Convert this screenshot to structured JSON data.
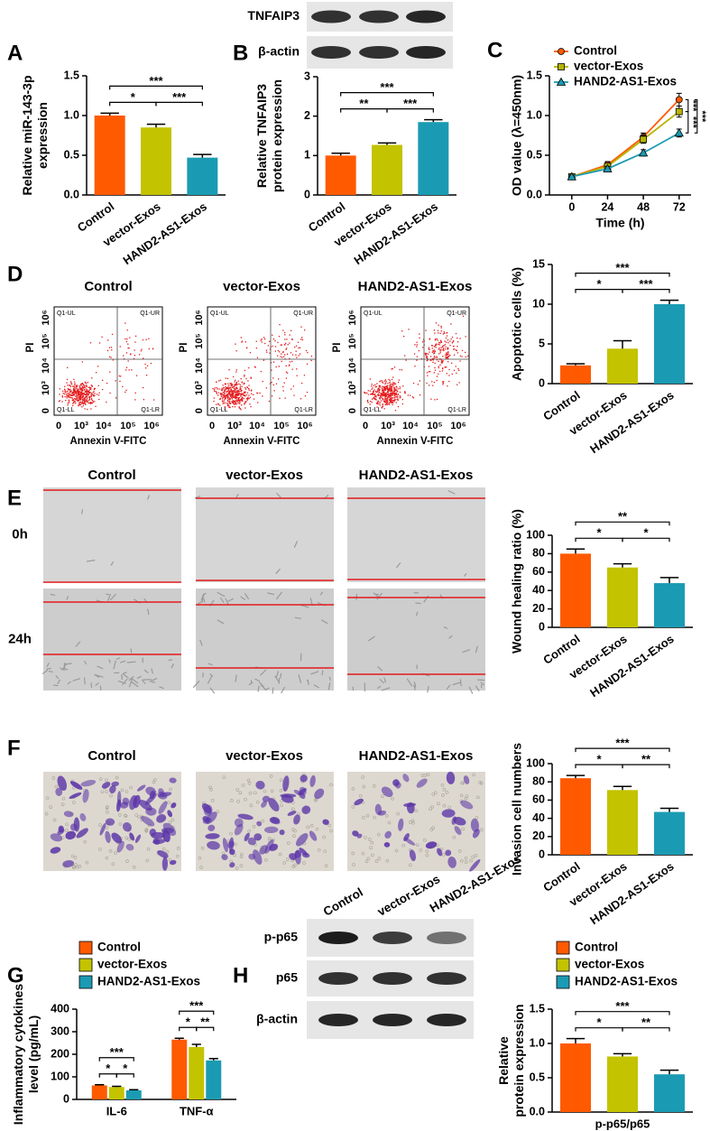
{
  "panel_labels": [
    "A",
    "B",
    "C",
    "D",
    "E",
    "F",
    "G",
    "H"
  ],
  "chart_data": [
    {
      "type": "bar",
      "ylabel": [
        "Relative miR-143-3p",
        "expression"
      ],
      "categories": [
        "Control",
        "vector-Exos",
        "HAND2-AS1-Exos"
      ],
      "values": [
        1.0,
        0.85,
        0.47
      ],
      "errors": [
        0.03,
        0.04,
        0.04
      ],
      "colors": [
        "#ff5a00",
        "#c3c300",
        "#1b9bb3"
      ],
      "ylim": [
        0,
        1.5
      ],
      "yticks": [
        {
          "value": 0,
          "label": "0.0"
        },
        0.5,
        {
          "value": 1,
          "label": "1.0"
        },
        1.5
      ],
      "significance": [
        {
          "pair": [
            0,
            1
          ],
          "label": "*"
        },
        {
          "pair": [
            1,
            2
          ],
          "label": "***"
        },
        {
          "pair": [
            0,
            2
          ],
          "label": "***"
        }
      ]
    },
    {
      "type": "bar",
      "ylabel": [
        "Relative TNFAIP3",
        "protein expression"
      ],
      "categories": [
        "Control",
        "vector-Exos",
        "HAND2-AS1-Exos"
      ],
      "values": [
        1.0,
        1.27,
        1.85
      ],
      "errors": [
        0.06,
        0.05,
        0.06
      ],
      "colors": [
        "#ff5a00",
        "#c3c300",
        "#1b9bb3"
      ],
      "ylim": [
        0,
        3
      ],
      "yticks": [
        0,
        1,
        2,
        3
      ],
      "significance": [
        {
          "pair": [
            0,
            1
          ],
          "label": "**"
        },
        {
          "pair": [
            1,
            2
          ],
          "label": "***"
        },
        {
          "pair": [
            0,
            2
          ],
          "label": "***"
        }
      ]
    },
    {
      "type": "line",
      "xlabel": "Time (h)",
      "ylabel": [
        "OD value (λ=450nm)"
      ],
      "x": [
        0,
        24,
        48,
        72
      ],
      "xlim": [
        -15,
        80
      ],
      "xticks": [
        0,
        24,
        48,
        72
      ],
      "ylim": [
        0,
        1.5
      ],
      "yticks": [
        {
          "value": 0,
          "label": "0.0"
        },
        0.5,
        {
          "value": 1,
          "label": "1.0"
        },
        1.5
      ],
      "legend": "upper left",
      "series": [
        {
          "name": "Control",
          "color": "#ff5a00",
          "marker": "circle",
          "values": [
            0.23,
            0.38,
            0.73,
            1.2
          ],
          "errors": [
            0.02,
            0.04,
            0.05,
            0.08
          ]
        },
        {
          "name": "vector-Exos",
          "color": "#b5b500",
          "marker": "square",
          "values": [
            0.23,
            0.36,
            0.7,
            1.05
          ],
          "errors": [
            0.02,
            0.03,
            0.05,
            0.07
          ]
        },
        {
          "name": "HAND2-AS1-Exos",
          "color": "#1b9bb3",
          "marker": "triangle",
          "values": [
            0.23,
            0.33,
            0.53,
            0.78
          ],
          "errors": [
            0.02,
            0.03,
            0.04,
            0.05
          ]
        }
      ],
      "significance": [
        {
          "pair": [
            0,
            1
          ],
          "label": "***"
        },
        {
          "pair": [
            1,
            2
          ],
          "label": "***"
        },
        {
          "pair": [
            0,
            2
          ],
          "label": "***"
        }
      ]
    },
    {
      "type": "bar",
      "ylabel": [
        "Apoptotic cells (%)"
      ],
      "categories": [
        "Control",
        "vector-Exos",
        "HAND2-AS1-Exos"
      ],
      "values": [
        2.3,
        4.4,
        10.0
      ],
      "errors": [
        0.2,
        1.0,
        0.5
      ],
      "colors": [
        "#ff5a00",
        "#c3c300",
        "#1b9bb3"
      ],
      "ylim": [
        0,
        15
      ],
      "yticks": [
        0,
        5,
        10,
        15
      ],
      "significance": [
        {
          "pair": [
            0,
            1
          ],
          "label": "*"
        },
        {
          "pair": [
            1,
            2
          ],
          "label": "***"
        },
        {
          "pair": [
            0,
            2
          ],
          "label": "***"
        }
      ]
    },
    {
      "type": "bar",
      "ylabel": [
        "Wound healing ratio (%)"
      ],
      "categories": [
        "Control",
        "vector-Exos",
        "HAND2-AS1-Exos"
      ],
      "values": [
        80,
        65,
        48
      ],
      "errors": [
        5,
        4,
        6
      ],
      "colors": [
        "#ff5a00",
        "#c3c300",
        "#1b9bb3"
      ],
      "ylim": [
        0,
        100
      ],
      "yticks": [
        0,
        20,
        40,
        60,
        80,
        100
      ],
      "significance": [
        {
          "pair": [
            0,
            1
          ],
          "label": "*"
        },
        {
          "pair": [
            1,
            2
          ],
          "label": "*"
        },
        {
          "pair": [
            0,
            2
          ],
          "label": "**"
        }
      ]
    },
    {
      "type": "bar",
      "ylabel": [
        "Invasion cell numbers"
      ],
      "categories": [
        "Control",
        "vector-Exos",
        "HAND2-AS1-Exos"
      ],
      "values": [
        84,
        71,
        47
      ],
      "errors": [
        3,
        4,
        4
      ],
      "colors": [
        "#ff5a00",
        "#c3c300",
        "#1b9bb3"
      ],
      "ylim": [
        0,
        100
      ],
      "yticks": [
        0,
        20,
        40,
        60,
        80,
        100
      ],
      "significance": [
        {
          "pair": [
            0,
            1
          ],
          "label": "*"
        },
        {
          "pair": [
            1,
            2
          ],
          "label": "**"
        },
        {
          "pair": [
            0,
            2
          ],
          "label": "***"
        }
      ]
    },
    {
      "type": "bar",
      "ylabel": [
        "Inflammatory cytokines",
        "level (pg/mL)"
      ],
      "categories": [
        "IL-6",
        "TNF-α"
      ],
      "series": [
        {
          "name": "Control",
          "color": "#ff5a00",
          "values": [
            62,
            265
          ],
          "errors": [
            3,
            6
          ]
        },
        {
          "name": "vector-Exos",
          "color": "#c3c300",
          "values": [
            55,
            232
          ],
          "errors": [
            3,
            12
          ]
        },
        {
          "name": "HAND2-AS1-Exos",
          "color": "#1b9bb3",
          "values": [
            40,
            173
          ],
          "errors": [
            3,
            8
          ]
        }
      ],
      "ylim": [
        0,
        400
      ],
      "yticks": [
        0,
        100,
        200,
        300,
        400
      ],
      "legend": "upper left",
      "significance": [
        {
          "category": 0,
          "pair": [
            0,
            1
          ],
          "label": "*"
        },
        {
          "category": 0,
          "pair": [
            1,
            2
          ],
          "label": "*"
        },
        {
          "category": 0,
          "pair": [
            0,
            2
          ],
          "label": "***"
        },
        {
          "category": 1,
          "pair": [
            0,
            1
          ],
          "label": "*"
        },
        {
          "category": 1,
          "pair": [
            1,
            2
          ],
          "label": "**"
        },
        {
          "category": 1,
          "pair": [
            0,
            2
          ],
          "label": "***"
        }
      ]
    },
    {
      "type": "bar",
      "ylabel": [
        "Relative",
        "protein expression"
      ],
      "categories": [
        "p-p65/p65"
      ],
      "series": [
        {
          "name": "Control",
          "color": "#ff5a00",
          "values": [
            1.0
          ],
          "errors": [
            0.07
          ]
        },
        {
          "name": "vector-Exos",
          "color": "#c3c300",
          "values": [
            0.81
          ],
          "errors": [
            0.04
          ]
        },
        {
          "name": "HAND2-AS1-Exos",
          "color": "#1b9bb3",
          "values": [
            0.55
          ],
          "errors": [
            0.06
          ]
        }
      ],
      "ylim": [
        0,
        1.5
      ],
      "yticks": [
        {
          "value": 0,
          "label": "0.0"
        },
        0.5,
        {
          "value": 1,
          "label": "1.0"
        },
        1.5
      ],
      "legend": "upper left",
      "significance": [
        {
          "category": 0,
          "pair": [
            0,
            1
          ],
          "label": "*"
        },
        {
          "category": 0,
          "pair": [
            1,
            2
          ],
          "label": "**"
        },
        {
          "category": 0,
          "pair": [
            0,
            2
          ],
          "label": "***"
        }
      ]
    }
  ],
  "blot_B": {
    "rows": [
      "TNFAIP3",
      "β-actin"
    ]
  },
  "flow_D": {
    "titles": [
      "Control",
      "vector-Exos",
      "HAND2-AS1-Exos"
    ],
    "quadrants": [
      "Q1-UL",
      "Q1-UR",
      "Q1-LL",
      "Q1-LR"
    ],
    "xlabel": "Annexin V-FITC",
    "ylabel": "PI",
    "ticks": [
      "0",
      "10³",
      "10⁴",
      "10⁵",
      "10⁶"
    ]
  },
  "wound_E": {
    "titles": [
      "Control",
      "vector-Exos",
      "HAND2-AS1-Exos"
    ],
    "rows": [
      "0h",
      "24h"
    ]
  },
  "invasion_F": {
    "titles": [
      "Control",
      "vector-Exos",
      "HAND2-AS1-Exos"
    ]
  },
  "blot_H": {
    "columns": [
      "Control",
      "vector-Exos",
      "HAND2-AS1-Exos"
    ],
    "rows": [
      "p-p65",
      "p65",
      "β-actin"
    ]
  }
}
